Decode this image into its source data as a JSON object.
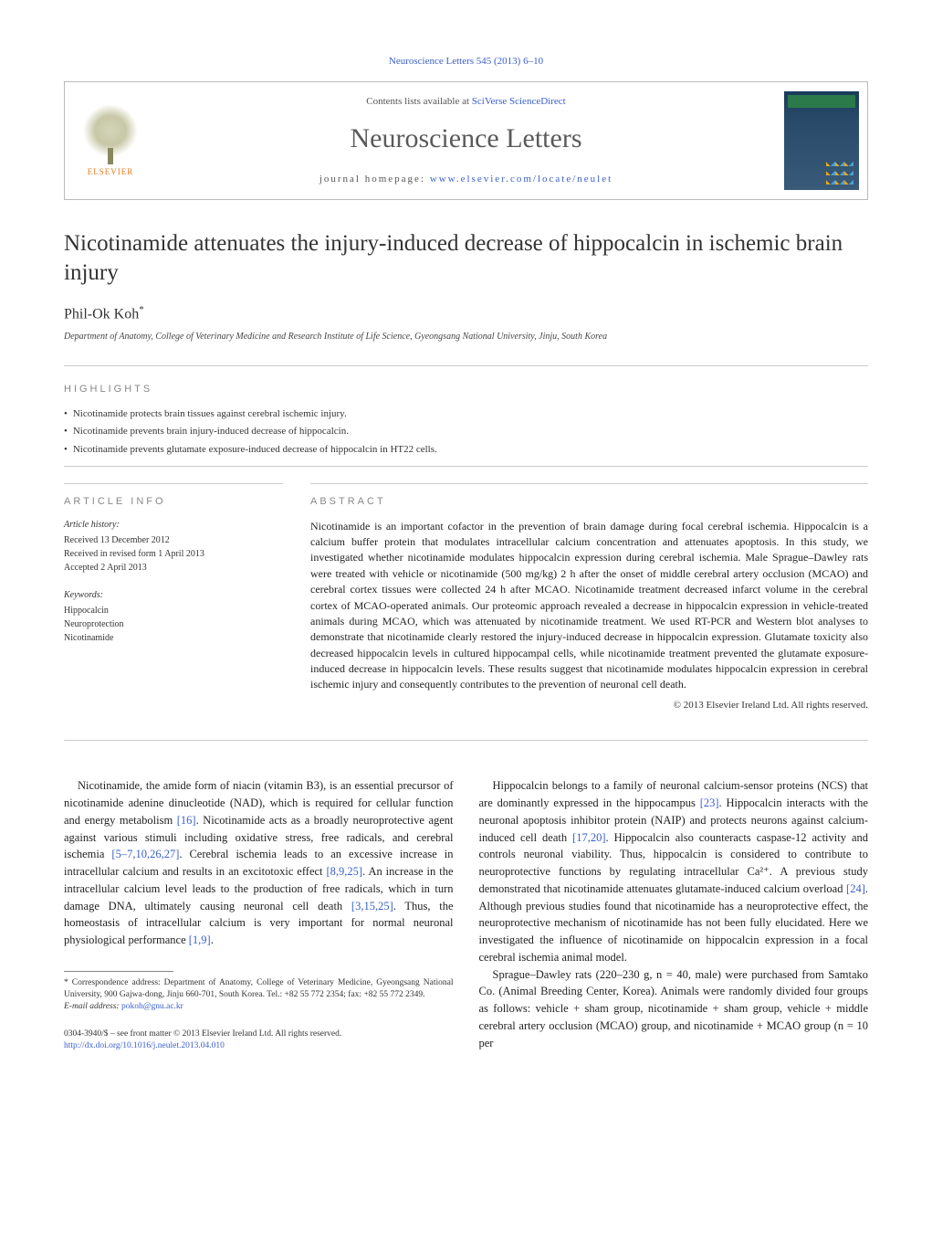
{
  "citation": "Neuroscience Letters 545 (2013) 6–10",
  "header": {
    "contents_prefix": "Contents lists available at ",
    "contents_link": "SciVerse ScienceDirect",
    "journal_name": "Neuroscience Letters",
    "homepage_prefix": "journal homepage: ",
    "homepage_link": "www.elsevier.com/locate/neulet",
    "elsevier_label": "ELSEVIER"
  },
  "article": {
    "title": "Nicotinamide attenuates the injury-induced decrease of hippocalcin in ischemic brain injury",
    "author": "Phil-Ok Koh",
    "author_marker": "*",
    "affiliation": "Department of Anatomy, College of Veterinary Medicine and Research Institute of Life Science, Gyeongsang National University, Jinju, South Korea"
  },
  "highlights": {
    "label": "HIGHLIGHTS",
    "items": [
      "Nicotinamide protects brain tissues against cerebral ischemic injury.",
      "Nicotinamide prevents brain injury-induced decrease of hippocalcin.",
      "Nicotinamide prevents glutamate exposure-induced decrease of hippocalcin in HT22 cells."
    ]
  },
  "article_info": {
    "label": "ARTICLE INFO",
    "history_label": "Article history:",
    "received": "Received 13 December 2012",
    "revised": "Received in revised form 1 April 2013",
    "accepted": "Accepted 2 April 2013",
    "keywords_label": "Keywords:",
    "keywords": [
      "Hippocalcin",
      "Neuroprotection",
      "Nicotinamide"
    ]
  },
  "abstract": {
    "label": "ABSTRACT",
    "text": "Nicotinamide is an important cofactor in the prevention of brain damage during focal cerebral ischemia. Hippocalcin is a calcium buffer protein that modulates intracellular calcium concentration and attenuates apoptosis. In this study, we investigated whether nicotinamide modulates hippocalcin expression during cerebral ischemia. Male Sprague–Dawley rats were treated with vehicle or nicotinamide (500 mg/kg) 2 h after the onset of middle cerebral artery occlusion (MCAO) and cerebral cortex tissues were collected 24 h after MCAO. Nicotinamide treatment decreased infarct volume in the cerebral cortex of MCAO-operated animals. Our proteomic approach revealed a decrease in hippocalcin expression in vehicle-treated animals during MCAO, which was attenuated by nicotinamide treatment. We used RT-PCR and Western blot analyses to demonstrate that nicotinamide clearly restored the injury-induced decrease in hippocalcin expression. Glutamate toxicity also decreased hippocalcin levels in cultured hippocampal cells, while nicotinamide treatment prevented the glutamate exposure-induced decrease in hippocalcin levels. These results suggest that nicotinamide modulates hippocalcin expression in cerebral ischemic injury and consequently contributes to the prevention of neuronal cell death.",
    "copyright": "© 2013 Elsevier Ireland Ltd. All rights reserved."
  },
  "body": {
    "col1_p1_a": "Nicotinamide, the amide form of niacin (vitamin B3), is an essential precursor of nicotinamide adenine dinucleotide (NAD), which is required for cellular function and energy metabolism ",
    "col1_ref1": "[16]",
    "col1_p1_b": ". Nicotinamide acts as a broadly neuroprotective agent against various stimuli including oxidative stress, free radicals, and cerebral ischemia ",
    "col1_ref2": "[5–7,10,26,27]",
    "col1_p1_c": ". Cerebral ischemia leads to an excessive increase in intracellular calcium and results in an excitotoxic effect ",
    "col1_ref3": "[8,9,25]",
    "col1_p1_d": ". An increase in the intracellular calcium level leads to the production of free radicals, which in turn damage DNA, ultimately causing neuronal cell death ",
    "col1_ref4": "[3,15,25]",
    "col1_p1_e": ". Thus, the homeostasis of intracellular calcium is very important for normal neuronal physiological performance ",
    "col1_ref5": "[1,9]",
    "col1_p1_f": ".",
    "col2_p1_a": "Hippocalcin belongs to a family of neuronal calcium-sensor proteins (NCS) that are dominantly expressed in the hippocampus ",
    "col2_ref1": "[23]",
    "col2_p1_b": ". Hippocalcin interacts with the neuronal apoptosis inhibitor protein (NAIP) and protects neurons against calcium-induced cell death ",
    "col2_ref2": "[17,20]",
    "col2_p1_c": ". Hippocalcin also counteracts caspase-12 activity and controls neuronal viability. Thus, hippocalcin is considered to contribute to neuroprotective functions by regulating intracellular Ca²⁺. A previous study demonstrated that nicotinamide attenuates glutamate-induced calcium overload ",
    "col2_ref3": "[24]",
    "col2_p1_d": ". Although previous studies found that nicotinamide has a neuroprotective effect, the neuroprotective mechanism of nicotinamide has not been fully elucidated. Here we investigated the influence of nicotinamide on hippocalcin expression in a focal cerebral ischemia animal model.",
    "col2_p2": "Sprague–Dawley rats (220–230 g, n = 40, male) were purchased from Samtako Co. (Animal Breeding Center, Korea). Animals were randomly divided four groups as follows: vehicle + sham group, nicotinamide + sham group, vehicle + middle cerebral artery occlusion (MCAO) group, and nicotinamide + MCAO group (n = 10 per"
  },
  "footnote": {
    "marker": "*",
    "text": " Correspondence address: Department of Anatomy, College of Veterinary Medicine, Gyeongsang National University, 900 Gajwa-dong, Jinju 660-701, South Korea. Tel.: +82 55 772 2354; fax: +82 55 772 2349.",
    "email_label": "E-mail address: ",
    "email": "pokoh@gnu.ac.kr"
  },
  "footer": {
    "line1": "0304-3940/$ – see front matter © 2013 Elsevier Ireland Ltd. All rights reserved.",
    "doi": "http://dx.doi.org/10.1016/j.neulet.2013.04.010"
  },
  "colors": {
    "link": "#3a5fcd",
    "text": "#1a1a1a",
    "muted": "#888",
    "border": "#ccc",
    "elsevier_orange": "#e67817"
  }
}
